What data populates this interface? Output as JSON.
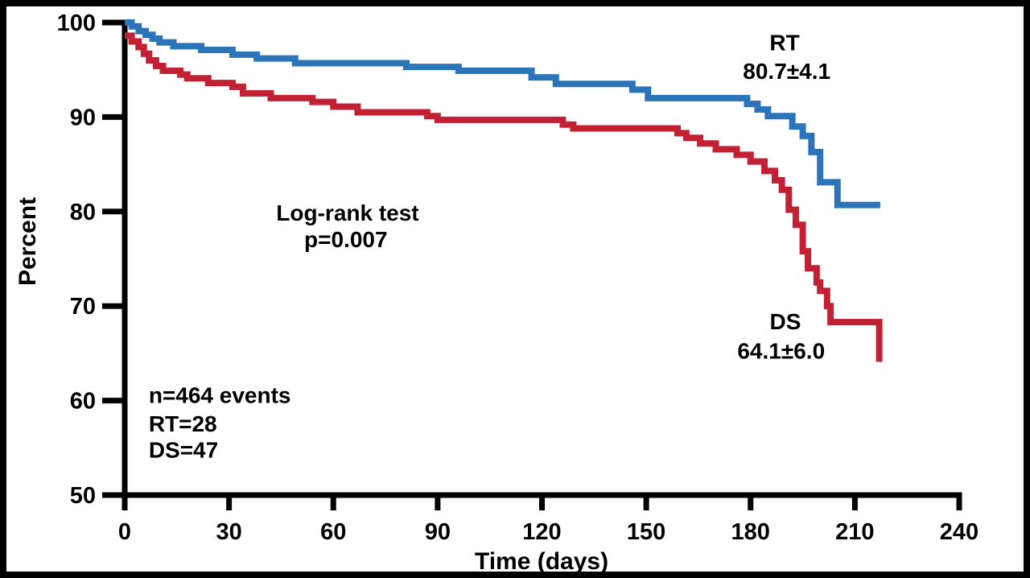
{
  "figure": {
    "background": "#ffffff",
    "frame_color": "#000000"
  },
  "chart_data": {
    "type": "line",
    "variant": "kaplan-meier-step",
    "title": "",
    "xlabel": "Time (days)",
    "ylabel": "Percent",
    "xlim": [
      0,
      240
    ],
    "ylim": [
      50,
      100
    ],
    "xticks": [
      0,
      30,
      60,
      90,
      120,
      150,
      180,
      210,
      240
    ],
    "yticks": [
      50,
      60,
      70,
      80,
      90,
      100
    ],
    "grid": false,
    "legend_position": "none",
    "axis_color": "#000000",
    "series": [
      {
        "name": "RT",
        "color": "#2B74BA",
        "final_estimate_label": "80.7±4.1",
        "events": 28,
        "end_time": 217.3,
        "points": [
          [
            0,
            100
          ],
          [
            2,
            99.6
          ],
          [
            4,
            99.1
          ],
          [
            6,
            98.7
          ],
          [
            8,
            98.3
          ],
          [
            10,
            97.9
          ],
          [
            14,
            97.5
          ],
          [
            22,
            97.1
          ],
          [
            31,
            96.6
          ],
          [
            38,
            96.2
          ],
          [
            49,
            95.7
          ],
          [
            81,
            95.3
          ],
          [
            96,
            94.9
          ],
          [
            117,
            94.2
          ],
          [
            124,
            93.5
          ],
          [
            146,
            92.9
          ],
          [
            150.5,
            92.0
          ],
          [
            179,
            91.4
          ],
          [
            182,
            90.8
          ],
          [
            185,
            90.1
          ],
          [
            192,
            89.0
          ],
          [
            195,
            88.0
          ],
          [
            197.5,
            86.3
          ],
          [
            200,
            83.1
          ],
          [
            205,
            80.7
          ]
        ]
      },
      {
        "name": "DS",
        "color": "#C22133",
        "final_estimate_label": "64.1±6.0",
        "events": 47,
        "end_time": null,
        "points": [
          [
            0,
            98.6
          ],
          [
            2,
            98.0
          ],
          [
            4,
            97.4
          ],
          [
            5.5,
            96.7
          ],
          [
            7,
            96.0
          ],
          [
            9,
            95.4
          ],
          [
            11,
            94.9
          ],
          [
            16,
            94.5
          ],
          [
            18,
            94.1
          ],
          [
            24,
            93.6
          ],
          [
            31,
            93.2
          ],
          [
            34,
            92.5
          ],
          [
            42,
            92.0
          ],
          [
            54,
            91.6
          ],
          [
            60,
            91.1
          ],
          [
            67,
            90.5
          ],
          [
            87,
            90.1
          ],
          [
            90,
            89.7
          ],
          [
            126,
            89.2
          ],
          [
            129,
            88.8
          ],
          [
            159,
            88.3
          ],
          [
            161.5,
            87.8
          ],
          [
            165.5,
            87.2
          ],
          [
            170,
            86.6
          ],
          [
            176,
            86.0
          ],
          [
            180,
            85.3
          ],
          [
            184,
            84.3
          ],
          [
            187,
            83.3
          ],
          [
            189,
            82.3
          ],
          [
            191,
            80.2
          ],
          [
            193,
            78.6
          ],
          [
            195,
            75.8
          ],
          [
            196.5,
            74.0
          ],
          [
            199,
            72.5
          ],
          [
            200,
            71.6
          ],
          [
            202,
            70.0
          ],
          [
            203,
            68.3
          ],
          [
            217,
            64.1
          ]
        ]
      }
    ],
    "annotations": [
      {
        "id": "logrank-title",
        "text": "Log-rank test",
        "x": 64.1,
        "y": 79.9,
        "color": "#000000",
        "anchor": "middle"
      },
      {
        "id": "logrank-p",
        "text": "p=0.007",
        "x": 63.6,
        "y": 77.1,
        "color": "#000000",
        "anchor": "middle"
      },
      {
        "id": "n-events",
        "text": "n=464 events",
        "x": 6.9,
        "y": 60.6,
        "color": "#000000",
        "anchor": "start"
      },
      {
        "id": "rt-count",
        "text": "RT=28",
        "x": 6.9,
        "y": 57.6,
        "color": "#2B74BA",
        "anchor": "start"
      },
      {
        "id": "ds-count",
        "text": "DS=47",
        "x": 6.9,
        "y": 54.8,
        "color": "#C22133",
        "anchor": "start"
      },
      {
        "id": "rt-label",
        "text": "RT",
        "x": 189.8,
        "y": 97.9,
        "color": "#2B74BA",
        "anchor": "middle"
      },
      {
        "id": "rt-value",
        "text": "80.7±4.1",
        "x": 190.4,
        "y": 94.9,
        "color": "#2B74BA",
        "anchor": "middle"
      },
      {
        "id": "ds-label",
        "text": "DS",
        "x": 190.0,
        "y": 68.4,
        "color": "#C22133",
        "anchor": "middle"
      },
      {
        "id": "ds-value",
        "text": "64.1±6.0",
        "x": 188.8,
        "y": 65.3,
        "color": "#C22133",
        "anchor": "middle"
      }
    ]
  }
}
